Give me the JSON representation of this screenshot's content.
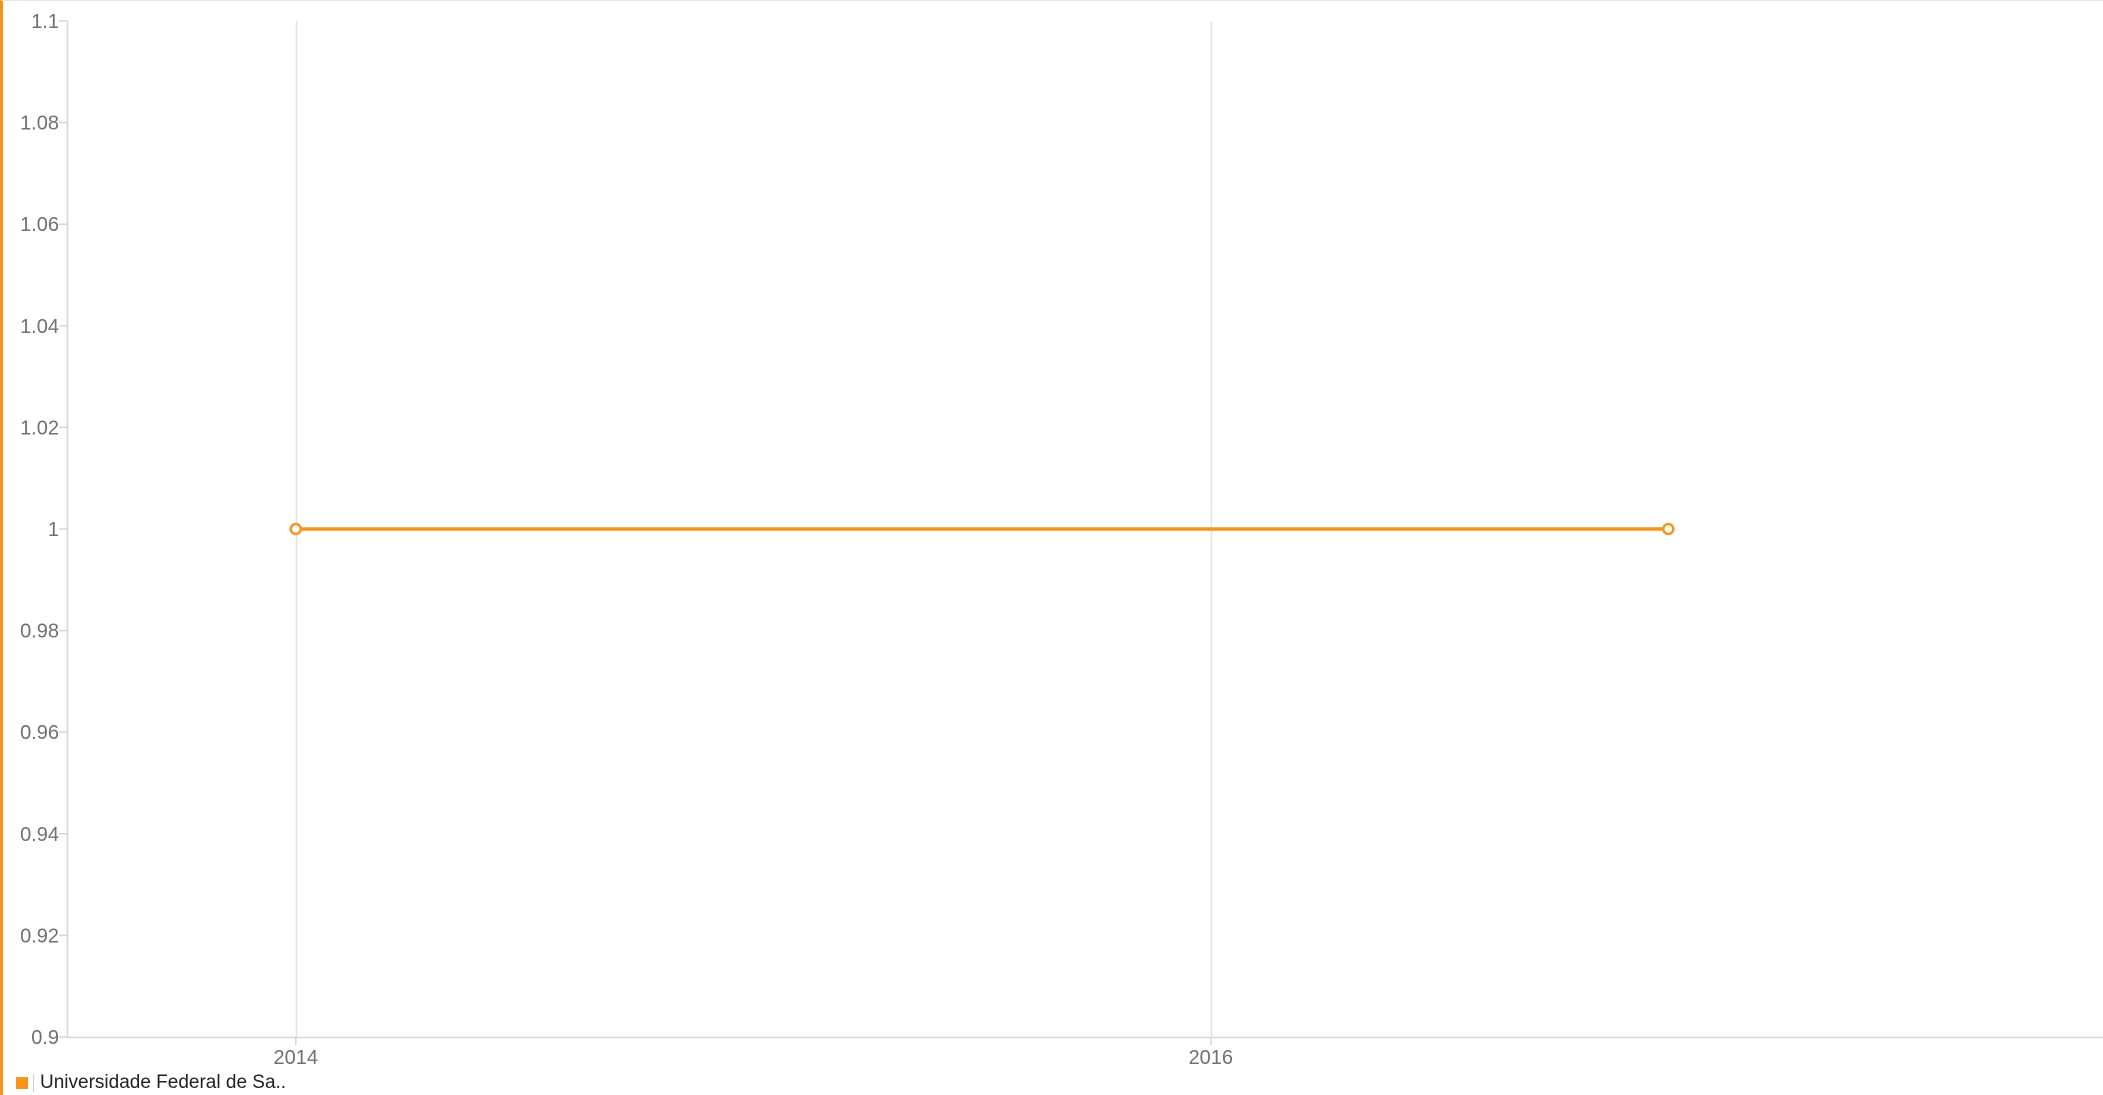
{
  "chart_data": {
    "type": "line",
    "title": "",
    "xlabel": "",
    "ylabel": "",
    "x_ticks": [
      2014,
      2016
    ],
    "x_tick_labels": [
      "2014",
      "2016"
    ],
    "xlim": [
      2013.5,
      2017.95
    ],
    "y_ticks": [
      0.9,
      0.92,
      0.94,
      0.96,
      0.98,
      1,
      1.02,
      1.04,
      1.06,
      1.08,
      1.1
    ],
    "y_tick_labels": [
      "0.9",
      "0.92",
      "0.94",
      "0.96",
      "0.98",
      "1",
      "1.02",
      "1.04",
      "1.06",
      "1.08",
      "1.1"
    ],
    "ylim": [
      0.9,
      1.1
    ],
    "grid": "vertical",
    "legend_position": "bottom-left",
    "series": [
      {
        "name": "Universidade Federal de Sa..",
        "color": "#f7941d",
        "x": [
          2014,
          2017
        ],
        "y": [
          1,
          1
        ]
      }
    ]
  }
}
